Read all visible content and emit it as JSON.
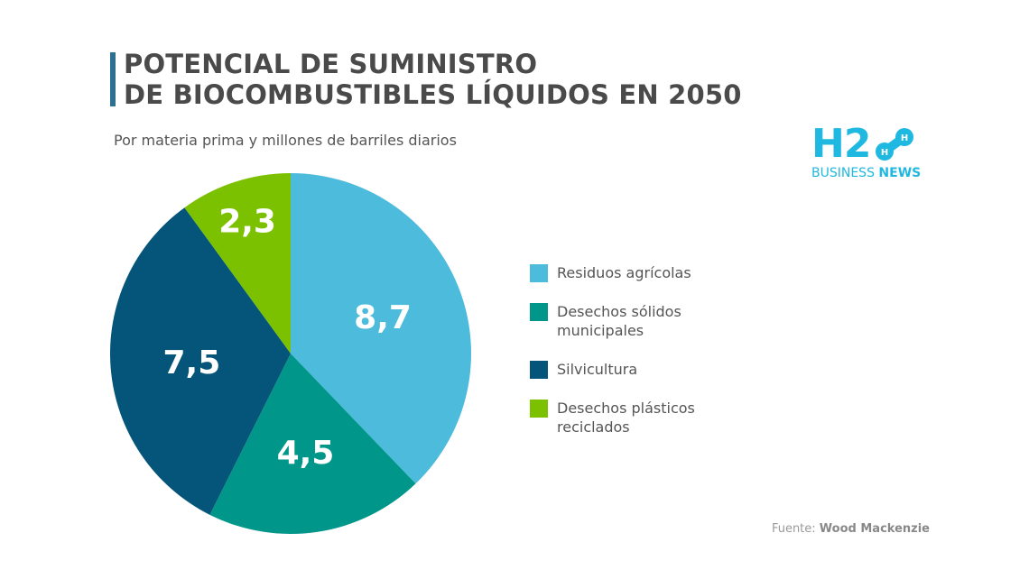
{
  "title_line1": "POTENCIAL DE SUMINISTRO",
  "title_line2": "DE BIOCOMBUSTIBLES LÍQUIDOS EN 2050",
  "subtitle": "Por materia prima y millones de barriles diarios",
  "logo": {
    "main": "H2",
    "line_a": "BUSINESS",
    "line_b": "NEWS",
    "molecule": "H H"
  },
  "source": {
    "label": "Fuente:",
    "name": "Wood Mackenzie"
  },
  "chart_data": {
    "type": "pie",
    "title": "",
    "start": "top",
    "direction": "clockwise",
    "series": [
      {
        "name": "Residuos agrícolas",
        "value": 8.7,
        "label": "8,7",
        "color": "#4dbbdb"
      },
      {
        "name": "Desechos sólidos municipales",
        "value": 4.5,
        "label": "4,5",
        "color": "#00968a"
      },
      {
        "name": "Silvicultura",
        "value": 7.5,
        "label": "7,5",
        "color": "#05557a"
      },
      {
        "name": "Desechos plásticos reciclados",
        "value": 2.3,
        "label": "2,3",
        "color": "#7cc100"
      }
    ],
    "legend": "right"
  }
}
